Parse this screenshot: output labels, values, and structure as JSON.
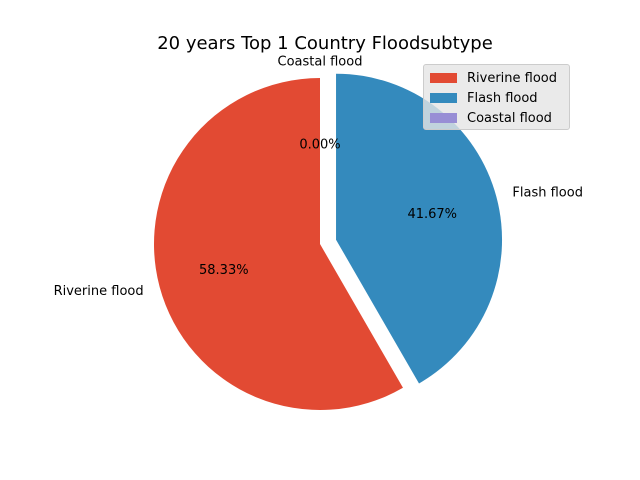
{
  "chart_data": {
    "type": "pie",
    "title": "20 years Top 1 Country Floodsubtype",
    "start_angle_deg": 90,
    "direction": "counterclockwise",
    "slices": [
      {
        "label": "Riverine flood",
        "value": 58.33,
        "pct_label": "58.33%",
        "color": "#E24A33",
        "exploded": false
      },
      {
        "label": "Flash flood",
        "value": 41.67,
        "pct_label": "41.67%",
        "color": "#348ABD",
        "exploded": true
      },
      {
        "label": "Coastal flood",
        "value": 0.0,
        "pct_label": "0.00%",
        "color": "#988ED5",
        "exploded": false
      }
    ],
    "legend": {
      "placement": "upper-right",
      "entries": [
        {
          "label": "Riverine flood",
          "color": "#E24A33"
        },
        {
          "label": "Flash flood",
          "color": "#348ABD"
        },
        {
          "label": "Coastal flood",
          "color": "#988ED5"
        }
      ]
    }
  }
}
